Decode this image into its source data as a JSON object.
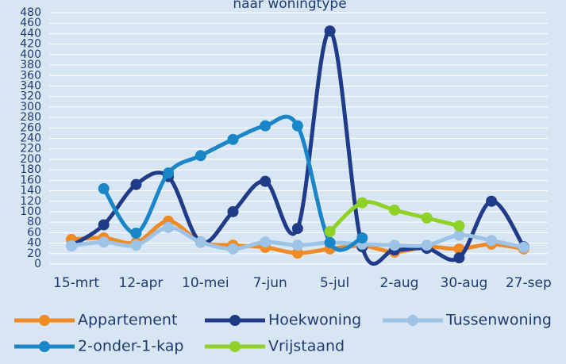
{
  "chart_data": {
    "type": "line",
    "title": "naar woningtype",
    "categories": [
      "15-mrt",
      null,
      "12-apr",
      null,
      "10-mei",
      null,
      "7-jun",
      null,
      "5-jul",
      null,
      "2-aug",
      null,
      "30-aug",
      null,
      "27-sep"
    ],
    "series": [
      {
        "name": "Appartement",
        "color": "#f08a24",
        "values": [
          47,
          50,
          41,
          82,
          42,
          36,
          32,
          21,
          29,
          35,
          23,
          33,
          29,
          38,
          29
        ]
      },
      {
        "name": "Hoekwoning",
        "color": "#203c89",
        "values": [
          35,
          75,
          152,
          167,
          42,
          100,
          158,
          68,
          445,
          33,
          27,
          30,
          12,
          120,
          33
        ]
      },
      {
        "name": "Tussenwoning",
        "color": "#9dc3e6",
        "values": [
          35,
          42,
          36,
          70,
          42,
          29,
          42,
          36,
          41,
          38,
          36,
          36,
          55,
          45,
          32
        ]
      },
      {
        "name": "2-onder-1-kap",
        "color": "#1a86c8",
        "values": [
          null,
          144,
          59,
          174,
          207,
          238,
          264,
          264,
          41,
          50,
          null,
          null,
          null,
          null,
          null
        ]
      },
      {
        "name": "Vrijstaand",
        "color": "#8fd126",
        "values": [
          null,
          null,
          null,
          null,
          null,
          null,
          null,
          null,
          62,
          117,
          103,
          88,
          73,
          null,
          null
        ]
      }
    ],
    "ylim": [
      0,
      480
    ],
    "yticks": [
      0,
      20,
      40,
      60,
      80,
      100,
      120,
      140,
      160,
      180,
      200,
      220,
      240,
      260,
      280,
      300,
      320,
      340,
      360,
      380,
      400,
      420,
      440,
      460,
      480
    ],
    "grid": true
  }
}
